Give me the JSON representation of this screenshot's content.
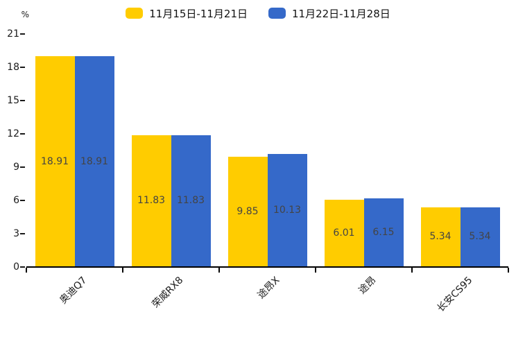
{
  "chart_data": {
    "type": "bar",
    "title": "",
    "xlabel": "",
    "ylabel": "%",
    "ylim": [
      0,
      21
    ],
    "yticks": [
      0,
      3,
      6,
      9,
      12,
      15,
      18,
      21
    ],
    "grid": false,
    "legend_position": "top",
    "value_labels_shown": true,
    "categories": [
      "奥迪Q7",
      "荣威RX8",
      "途昂X",
      "途昂",
      "长安CS95"
    ],
    "series": [
      {
        "name": "11月15日-11月21日",
        "color": "#FFCC00",
        "values": [
          18.91,
          11.83,
          9.85,
          6.01,
          5.34
        ]
      },
      {
        "name": "11月22日-11月28日",
        "color": "#3569C9",
        "values": [
          18.91,
          11.83,
          10.13,
          6.15,
          5.34
        ]
      }
    ],
    "value_label_color": "#444444",
    "axis_color": "#000000"
  }
}
